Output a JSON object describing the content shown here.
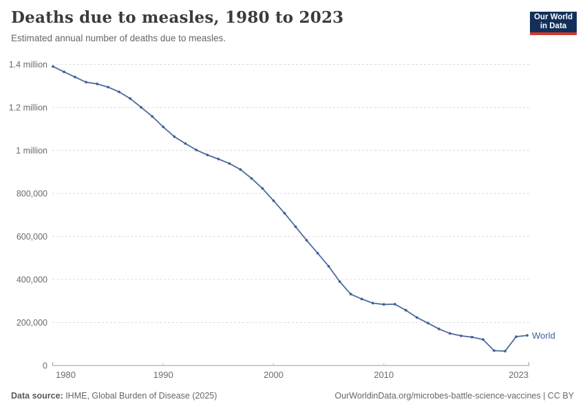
{
  "header": {
    "title": "Deaths due to measles, 1980 to 2023",
    "subtitle": "Estimated annual number of deaths due to measles."
  },
  "logo": {
    "line1": "Our World",
    "line2": "in Data",
    "bg_color": "#12305a",
    "bar_color": "#d4382c"
  },
  "chart_data": {
    "type": "line",
    "title": "Deaths due to measles, 1980 to 2023",
    "xlabel": "",
    "ylabel": "",
    "xlim": [
      1980,
      2023
    ],
    "ylim": [
      0,
      1400000
    ],
    "grid": "horizontal-dashed",
    "legend_position": "end-of-line-label",
    "x": [
      1980,
      1981,
      1982,
      1983,
      1984,
      1985,
      1986,
      1987,
      1988,
      1989,
      1990,
      1991,
      1992,
      1993,
      1994,
      1995,
      1996,
      1997,
      1998,
      1999,
      2000,
      2001,
      2002,
      2003,
      2004,
      2005,
      2006,
      2007,
      2008,
      2009,
      2010,
      2011,
      2012,
      2013,
      2014,
      2015,
      2016,
      2017,
      2018,
      2019,
      2020,
      2021,
      2022,
      2023
    ],
    "series": [
      {
        "name": "World",
        "color": "#4c6a9c",
        "marker_color": "#40609a",
        "values": [
          1390000,
          1365000,
          1341000,
          1317000,
          1309000,
          1294000,
          1272000,
          1241000,
          1200000,
          1158000,
          1109000,
          1064000,
          1032000,
          1002000,
          979000,
          960000,
          939000,
          911000,
          870000,
          823000,
          766000,
          708000,
          645000,
          582000,
          522000,
          461000,
          390000,
          332000,
          309000,
          290000,
          284000,
          285000,
          257000,
          223000,
          197000,
          170000,
          149000,
          138000,
          132000,
          121000,
          69000,
          67000,
          134000,
          140000
        ]
      }
    ],
    "y_ticks": [
      {
        "value": 0,
        "label": "0"
      },
      {
        "value": 200000,
        "label": "200,000"
      },
      {
        "value": 400000,
        "label": "400,000"
      },
      {
        "value": 600000,
        "label": "600,000"
      },
      {
        "value": 800000,
        "label": "800,000"
      },
      {
        "value": 1000000,
        "label": "1 million"
      },
      {
        "value": 1200000,
        "label": "1.2 million"
      },
      {
        "value": 1400000,
        "label": "1.4 million"
      }
    ],
    "x_ticks": [
      {
        "year": 1980,
        "label": "1980"
      },
      {
        "year": 1990,
        "label": "1990"
      },
      {
        "year": 2000,
        "label": "2000"
      },
      {
        "year": 2010,
        "label": "2010"
      },
      {
        "year": 2023,
        "label": "2023"
      }
    ]
  },
  "footer": {
    "source_label": "Data source:",
    "source_value": " IHME, Global Burden of Disease (2025)",
    "link": "OurWorldinData.org/microbes-battle-science-vaccines | CC BY"
  }
}
